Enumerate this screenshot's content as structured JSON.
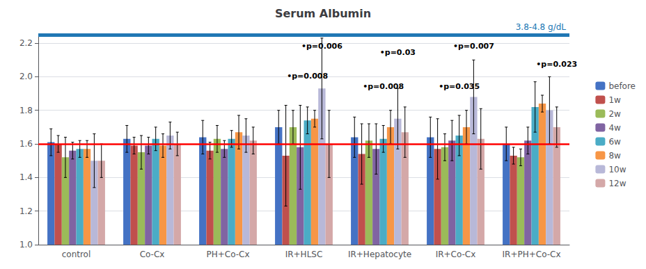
{
  "chart_data": {
    "type": "bar",
    "title": "Serum Albumin",
    "categories": [
      "control",
      "Co-Cx",
      "PH+Co-Cx",
      "IR+HLSC",
      "IR+Hepatocyte",
      "IR+Co-Cx",
      "IR+PH+Co-Cx"
    ],
    "series": [
      {
        "name": "before",
        "color": "#4472C4",
        "values": [
          1.61,
          1.63,
          1.64,
          1.7,
          1.64,
          1.64,
          1.6
        ],
        "errors": [
          0.08,
          0.08,
          0.1,
          0.1,
          0.12,
          0.12,
          0.1
        ]
      },
      {
        "name": "1w",
        "color": "#C0504D",
        "values": [
          1.6,
          1.59,
          1.56,
          1.53,
          1.54,
          1.57,
          1.53
        ],
        "errors": [
          0.05,
          0.05,
          0.05,
          0.3,
          0.18,
          0.18,
          0.05
        ]
      },
      {
        "name": "2w",
        "color": "#9BBB59",
        "values": [
          1.52,
          1.55,
          1.63,
          1.7,
          1.62,
          1.58,
          1.52
        ],
        "errors": [
          0.12,
          0.1,
          0.08,
          0.1,
          0.1,
          0.08,
          0.05
        ]
      },
      {
        "name": "4w",
        "color": "#8064A2",
        "values": [
          1.56,
          1.59,
          1.57,
          1.58,
          1.57,
          1.62,
          1.62
        ],
        "errors": [
          0.05,
          0.05,
          0.05,
          0.25,
          0.15,
          0.12,
          0.08
        ]
      },
      {
        "name": "6w",
        "color": "#4BACC6",
        "values": [
          1.57,
          1.63,
          1.63,
          1.74,
          1.63,
          1.65,
          1.82
        ],
        "errors": [
          0.05,
          0.07,
          0.05,
          0.08,
          0.08,
          0.12,
          0.15
        ]
      },
      {
        "name": "8w",
        "color": "#F79646",
        "values": [
          1.57,
          1.59,
          1.67,
          1.75,
          1.7,
          1.7,
          1.84
        ],
        "errors": [
          0.05,
          0.07,
          0.1,
          0.05,
          0.1,
          0.1,
          0.05
        ]
      },
      {
        "name": "10w",
        "color": "#B8B8D8",
        "values": [
          1.5,
          1.65,
          1.65,
          1.93,
          1.75,
          1.88,
          1.8
        ],
        "errors": [
          0.16,
          0.08,
          0.1,
          0.3,
          0.18,
          0.22,
          0.2
        ]
      },
      {
        "name": "12w",
        "color": "#D4A8A8",
        "values": [
          1.5,
          1.6,
          1.62,
          1.6,
          1.67,
          1.63,
          1.7
        ],
        "errors": [
          0.1,
          0.07,
          0.08,
          0.2,
          0.15,
          0.18,
          0.12
        ]
      }
    ],
    "annotations": [
      {
        "category": "IR+HLSC",
        "series": "10w",
        "text": "•p=0.006",
        "y": 2.16,
        "bold": true
      },
      {
        "category": "IR+HLSC",
        "series": "6w",
        "text": "•p=0.008",
        "y": 1.98,
        "bold": true
      },
      {
        "category": "IR+Hepatocyte",
        "series": "10w",
        "text": "•p=0.03",
        "y": 2.12,
        "bold": true
      },
      {
        "category": "IR+Hepatocyte",
        "series": "6w",
        "text": "•p=0.008",
        "y": 1.92,
        "bold": true
      },
      {
        "category": "IR+Co-Cx",
        "series": "10w",
        "text": "•p=0.007",
        "y": 2.16,
        "bold": true
      },
      {
        "category": "IR+Co-Cx",
        "series": "6w",
        "text": "•p=0.035",
        "y": 1.92,
        "bold": true
      },
      {
        "category": "IR+PH+Co-Cx",
        "series": "12w",
        "text": "•p=0.023",
        "y": 2.05,
        "bold": true
      }
    ],
    "reference_lines": [
      {
        "y": 1.6,
        "color": "#FF0000"
      },
      {
        "y": 2.245,
        "color": "#2077B4",
        "label": "3.8-4.8 g/dL"
      }
    ],
    "ylim": [
      1.0,
      2.25
    ],
    "yticks": [
      {
        "value": 1.0,
        "label": "1.0"
      },
      1.2,
      1.4,
      1.6,
      1.8,
      {
        "value": 2.0,
        "label": "2.0"
      },
      2.2
    ],
    "grid": true,
    "legend": "right"
  }
}
